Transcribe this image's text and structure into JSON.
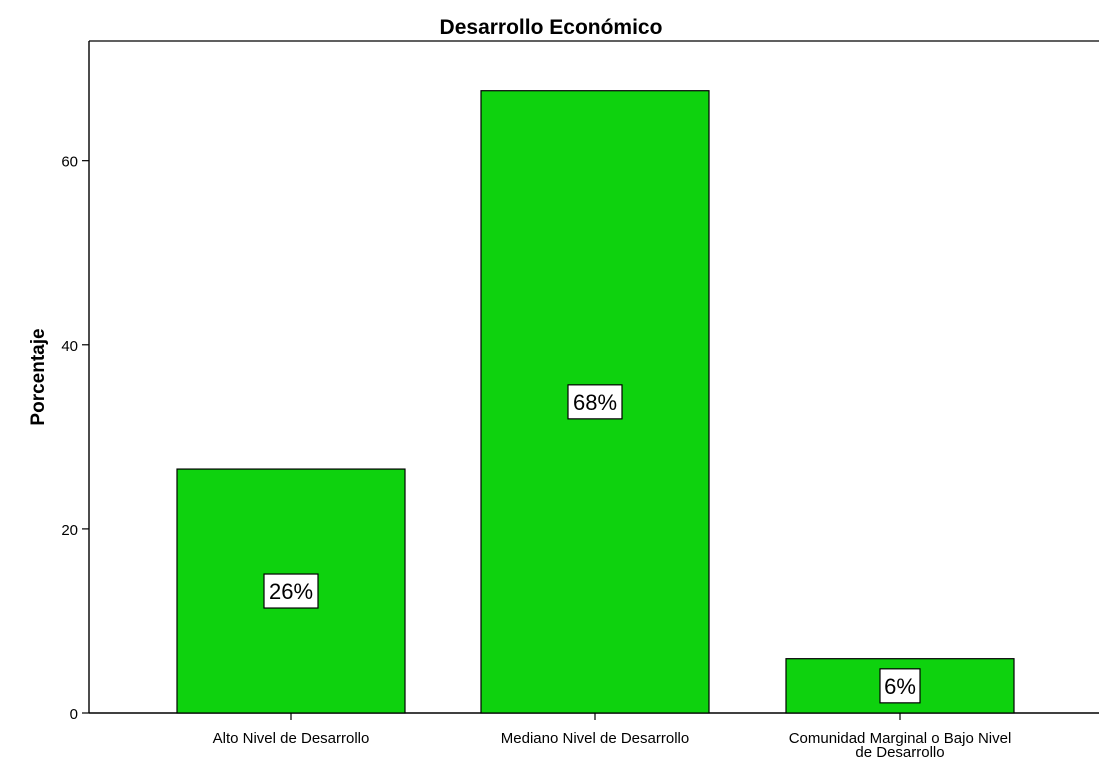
{
  "chart_data": {
    "type": "bar",
    "title": "Desarrollo Económico",
    "xlabel": "",
    "ylabel": "Porcentaje",
    "categories": [
      "Alto Nivel de Desarrollo",
      "Mediano Nivel de Desarrollo",
      "Comunidad Marginal o Bajo Nivel de Desarrollo"
    ],
    "category_label_lines": [
      [
        "Alto Nivel de Desarrollo"
      ],
      [
        "Mediano Nivel de Desarrollo"
      ],
      [
        "Comunidad Marginal o Bajo Nivel",
        "de Desarrollo"
      ]
    ],
    "values": [
      26.5,
      67.6,
      5.9
    ],
    "data_labels": [
      "26%",
      "68%",
      "6%"
    ],
    "ylim": [
      0,
      73
    ],
    "yticks": [
      0,
      20,
      40,
      60
    ],
    "grid": false,
    "bar_color": "#0ed20e",
    "bar_edge_color": "#000000"
  }
}
